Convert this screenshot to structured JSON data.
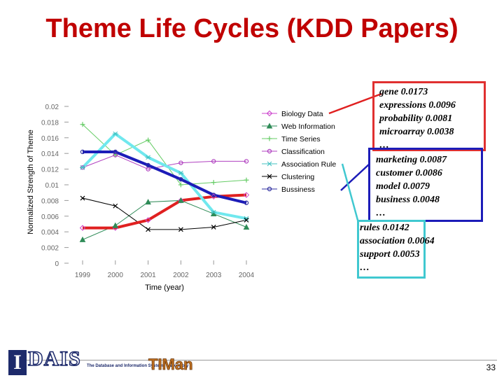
{
  "slide": {
    "title": "Theme Life Cycles (KDD Papers)",
    "page_number": "33"
  },
  "logos": {
    "i_letter": "I",
    "dais": "DAIS",
    "lab_name": "The Database and Information Systems Laboratory",
    "timan": "TIMan"
  },
  "annotations": {
    "red_box": [
      "gene  0.0173",
      "expressions  0.0096",
      "probability 0.0081",
      "microarray 0.0038",
      "…"
    ],
    "blue_box": [
      "marketing  0.0087",
      "customer  0.0086",
      "model 0.0079",
      "business 0.0048",
      "…"
    ],
    "cyan_box": [
      "rules  0.0142",
      "association  0.0064",
      "support 0.0053",
      "…"
    ]
  },
  "colors": {
    "title": "#c00000",
    "biology_highlight": "#e02020",
    "business_highlight": "#1c1cb8",
    "association_highlight": "#70e8ee"
  },
  "chart_data": {
    "type": "line",
    "xlabel": "Time (year)",
    "ylabel": "Normalized Strength of Theme",
    "x": [
      "1999",
      "2000",
      "2001",
      "2002",
      "2003",
      "2004"
    ],
    "ylim": [
      0,
      0.02
    ],
    "yticks": [
      "0",
      "0.002",
      "0.004",
      "0.006",
      "0.008",
      "0.01",
      "0.012",
      "0.014",
      "0.016",
      "0.018",
      "0.02"
    ],
    "legend_position": "right",
    "series": [
      {
        "name": "Biology Data",
        "values": [
          0.0045,
          0.0045,
          0.0055,
          0.008,
          0.0085,
          0.0087
        ],
        "color": "#cc44cc",
        "marker": "diamond",
        "highlight": "#e02020"
      },
      {
        "name": "Web Information",
        "values": [
          0.003,
          0.0048,
          0.0078,
          0.008,
          0.0063,
          0.0046
        ],
        "color": "#2e8b57",
        "marker": "triangle"
      },
      {
        "name": "Time Series",
        "values": [
          0.0177,
          0.0138,
          0.0157,
          0.01,
          0.0103,
          0.0106
        ],
        "color": "#66cc66",
        "marker": "plus"
      },
      {
        "name": "Classification",
        "values": [
          0.0122,
          0.0138,
          0.012,
          0.0128,
          0.013,
          0.013
        ],
        "color": "#b040c0",
        "marker": "circle"
      },
      {
        "name": "Association Rule",
        "values": [
          0.0122,
          0.0165,
          0.0135,
          0.0115,
          0.0065,
          0.0057
        ],
        "color": "#40c0c0",
        "marker": "star",
        "highlight": "#70e8ee"
      },
      {
        "name": "Clustering",
        "values": [
          0.0083,
          0.0073,
          0.0043,
          0.0043,
          0.0046,
          0.0055
        ],
        "color": "#000000",
        "marker": "x"
      },
      {
        "name": "Bussiness",
        "values": [
          0.0142,
          0.0142,
          0.0125,
          0.0107,
          0.0087,
          0.0077
        ],
        "color": "#3030a0",
        "marker": "circle",
        "highlight": "#1c1cb8"
      }
    ]
  }
}
